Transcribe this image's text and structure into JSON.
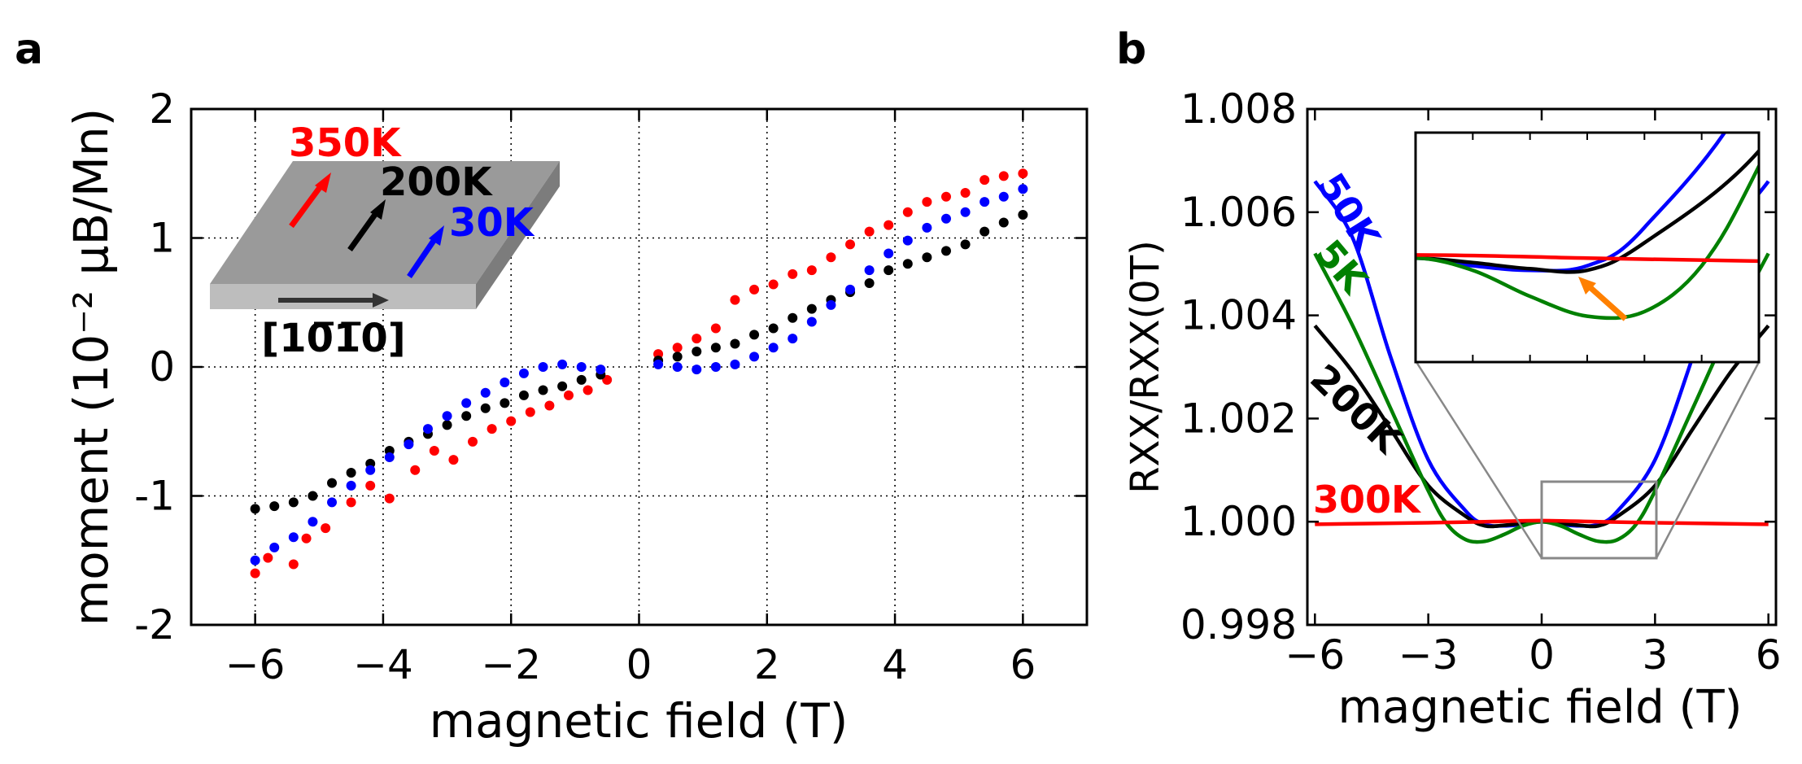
{
  "panel_a": {
    "label": "a",
    "inset": {
      "direction_label": "[10̅1̅0]",
      "arrows": [
        {
          "name": "350K",
          "label": "350K",
          "color": "#ff0000"
        },
        {
          "name": "200K",
          "label": "200K",
          "color": "#000000"
        },
        {
          "name": "30K",
          "label": "30K",
          "color": "#0000ff"
        }
      ]
    }
  },
  "panel_b": {
    "label": "b",
    "curve_labels": [
      {
        "name": "50K",
        "label": "50K",
        "color": "#0000ff"
      },
      {
        "name": "5K",
        "label": "5K",
        "color": "#008000"
      },
      {
        "name": "200K",
        "label": "200K",
        "color": "#000000"
      },
      {
        "name": "300K",
        "label": "300K",
        "color": "#ff0000"
      }
    ],
    "inset_arrow_color": "#ff8000"
  },
  "chart_data": [
    {
      "type": "scatter",
      "panel": "a",
      "title": "",
      "xlabel": "magnetic field (T)",
      "ylabel": "moment (10⁻² μB/Mn)",
      "xlim": [
        -7,
        7
      ],
      "ylim": [
        -2,
        2
      ],
      "xticks": [
        -6,
        -4,
        -2,
        0,
        2,
        4,
        6
      ],
      "xtick_labels": [
        "−6",
        "−4",
        "−2",
        "0",
        "2",
        "4",
        "6"
      ],
      "yticks": [
        -2,
        -1,
        0,
        1,
        2
      ],
      "ytick_labels": [
        "-2",
        "-1",
        "0",
        "1",
        "2"
      ],
      "grid": true,
      "series": [
        {
          "name": "350K",
          "color": "#ff0000",
          "x": [
            -6.0,
            -5.8,
            -5.4,
            -5.2,
            -4.9,
            -4.5,
            -4.2,
            -3.9,
            -3.5,
            -3.2,
            -2.9,
            -2.6,
            -2.3,
            -2.0,
            -1.7,
            -1.4,
            -1.1,
            -0.8,
            -0.5,
            0.3,
            0.6,
            0.9,
            1.2,
            1.5,
            1.8,
            2.1,
            2.4,
            2.7,
            3.0,
            3.3,
            3.6,
            3.9,
            4.2,
            4.5,
            4.8,
            5.1,
            5.4,
            5.7,
            6.0
          ],
          "y": [
            -1.6,
            -1.48,
            -1.53,
            -1.33,
            -1.25,
            -1.05,
            -0.92,
            -1.02,
            -0.8,
            -0.65,
            -0.72,
            -0.58,
            -0.48,
            -0.42,
            -0.35,
            -0.3,
            -0.22,
            -0.18,
            -0.1,
            0.1,
            0.15,
            0.22,
            0.3,
            0.52,
            0.6,
            0.64,
            0.72,
            0.75,
            0.85,
            0.95,
            1.05,
            1.1,
            1.2,
            1.28,
            1.32,
            1.35,
            1.45,
            1.48,
            1.5
          ]
        },
        {
          "name": "200K",
          "color": "#000000",
          "x": [
            -6.0,
            -5.7,
            -5.4,
            -5.1,
            -4.8,
            -4.5,
            -4.2,
            -3.9,
            -3.6,
            -3.3,
            -3.0,
            -2.7,
            -2.4,
            -2.1,
            -1.8,
            -1.5,
            -1.2,
            -0.9,
            -0.6,
            0.3,
            0.6,
            0.9,
            1.2,
            1.5,
            1.8,
            2.1,
            2.4,
            2.7,
            3.0,
            3.3,
            3.6,
            3.9,
            4.2,
            4.5,
            4.8,
            5.1,
            5.4,
            5.7,
            6.0
          ],
          "y": [
            -1.1,
            -1.08,
            -1.05,
            -1.0,
            -0.9,
            -0.82,
            -0.75,
            -0.65,
            -0.58,
            -0.52,
            -0.45,
            -0.38,
            -0.32,
            -0.28,
            -0.22,
            -0.18,
            -0.15,
            -0.1,
            -0.06,
            0.05,
            0.08,
            0.12,
            0.15,
            0.18,
            0.25,
            0.3,
            0.38,
            0.45,
            0.52,
            0.58,
            0.65,
            0.75,
            0.8,
            0.85,
            0.9,
            0.95,
            1.05,
            1.12,
            1.18
          ]
        },
        {
          "name": "30K",
          "color": "#0000ff",
          "x": [
            -6.0,
            -5.7,
            -5.4,
            -5.1,
            -4.8,
            -4.5,
            -4.2,
            -3.9,
            -3.6,
            -3.3,
            -3.0,
            -2.7,
            -2.4,
            -2.1,
            -1.8,
            -1.5,
            -1.2,
            -0.9,
            -0.6,
            0.3,
            0.6,
            0.9,
            1.2,
            1.5,
            1.8,
            2.1,
            2.4,
            2.7,
            3.0,
            3.3,
            3.6,
            3.9,
            4.2,
            4.5,
            4.8,
            5.1,
            5.4,
            5.7,
            6.0
          ],
          "y": [
            -1.5,
            -1.4,
            -1.32,
            -1.2,
            -1.05,
            -0.92,
            -0.8,
            -0.7,
            -0.6,
            -0.48,
            -0.38,
            -0.28,
            -0.2,
            -0.12,
            -0.05,
            0.0,
            0.02,
            0.0,
            -0.02,
            0.02,
            0.0,
            -0.02,
            0.0,
            0.02,
            0.08,
            0.15,
            0.22,
            0.35,
            0.48,
            0.6,
            0.75,
            0.88,
            0.98,
            1.08,
            1.15,
            1.2,
            1.28,
            1.32,
            1.38
          ]
        }
      ]
    },
    {
      "type": "line",
      "panel": "b",
      "title": "",
      "xlabel": "magnetic field (T)",
      "ylabel": "RXX/RXX(0T)",
      "xlim": [
        -6.2,
        6.2
      ],
      "ylim": [
        0.998,
        1.008
      ],
      "xticks": [
        -6,
        -3,
        0,
        3,
        6
      ],
      "xtick_labels": [
        "−6",
        "−3",
        "0",
        "3",
        "6"
      ],
      "yticks": [
        0.998,
        1.0,
        1.002,
        1.004,
        1.006,
        1.008
      ],
      "ytick_labels": [
        "0.998",
        "1.000",
        "1.002",
        "1.004",
        "1.006",
        "1.008"
      ],
      "grid": false,
      "series": [
        {
          "name": "300K",
          "color": "#ff0000",
          "x": [
            -6.0,
            -3.0,
            -1.5,
            0.0,
            1.5,
            3.0,
            6.0
          ],
          "y": [
            0.99995,
            0.99998,
            1.0,
            1.00002,
            1.0,
            0.99998,
            0.99995
          ]
        },
        {
          "name": "50K",
          "color": "#0000ff",
          "x": [
            -6.0,
            -5.0,
            -4.0,
            -3.0,
            -2.0,
            -1.5,
            -1.0,
            -0.5,
            0.0,
            0.5,
            1.0,
            1.5,
            2.0,
            3.0,
            4.0,
            5.0,
            6.0
          ],
          "y": [
            1.0066,
            1.0055,
            1.0032,
            1.0012,
            1.0002,
            0.99995,
            0.99992,
            0.99995,
            1.0,
            0.99995,
            0.99992,
            0.99995,
            1.0002,
            1.0012,
            1.0032,
            1.0055,
            1.0066
          ]
        },
        {
          "name": "200K",
          "color": "#000000",
          "x": [
            -6.0,
            -5.0,
            -4.0,
            -3.0,
            -2.0,
            -1.5,
            -1.0,
            -0.5,
            0.0,
            0.5,
            1.0,
            1.5,
            2.0,
            3.0,
            4.0,
            5.0,
            6.0
          ],
          "y": [
            1.0038,
            1.0029,
            1.0018,
            1.0007,
            1.0001,
            0.99992,
            0.99993,
            0.99997,
            1.0,
            0.99997,
            0.99993,
            0.99992,
            1.0001,
            1.0007,
            1.0018,
            1.0029,
            1.0038
          ]
        },
        {
          "name": "5K",
          "color": "#008000",
          "x": [
            -6.0,
            -5.0,
            -4.0,
            -3.0,
            -2.5,
            -2.0,
            -1.5,
            -1.0,
            -0.5,
            0.0,
            0.5,
            1.0,
            1.5,
            2.0,
            2.5,
            3.0,
            4.0,
            5.0,
            6.0
          ],
          "y": [
            1.0052,
            1.0038,
            1.0022,
            1.0006,
            0.99995,
            0.99965,
            0.99962,
            0.99975,
            0.99992,
            1.0,
            0.99992,
            0.99975,
            0.99962,
            0.99965,
            0.99995,
            1.0006,
            1.0022,
            1.0038,
            1.0052
          ]
        }
      ],
      "inset": {
        "x_range": [
          0,
          3
        ],
        "y_range": [
          0.99932,
          1.00082
        ],
        "description_color": "#ff8000"
      }
    }
  ]
}
